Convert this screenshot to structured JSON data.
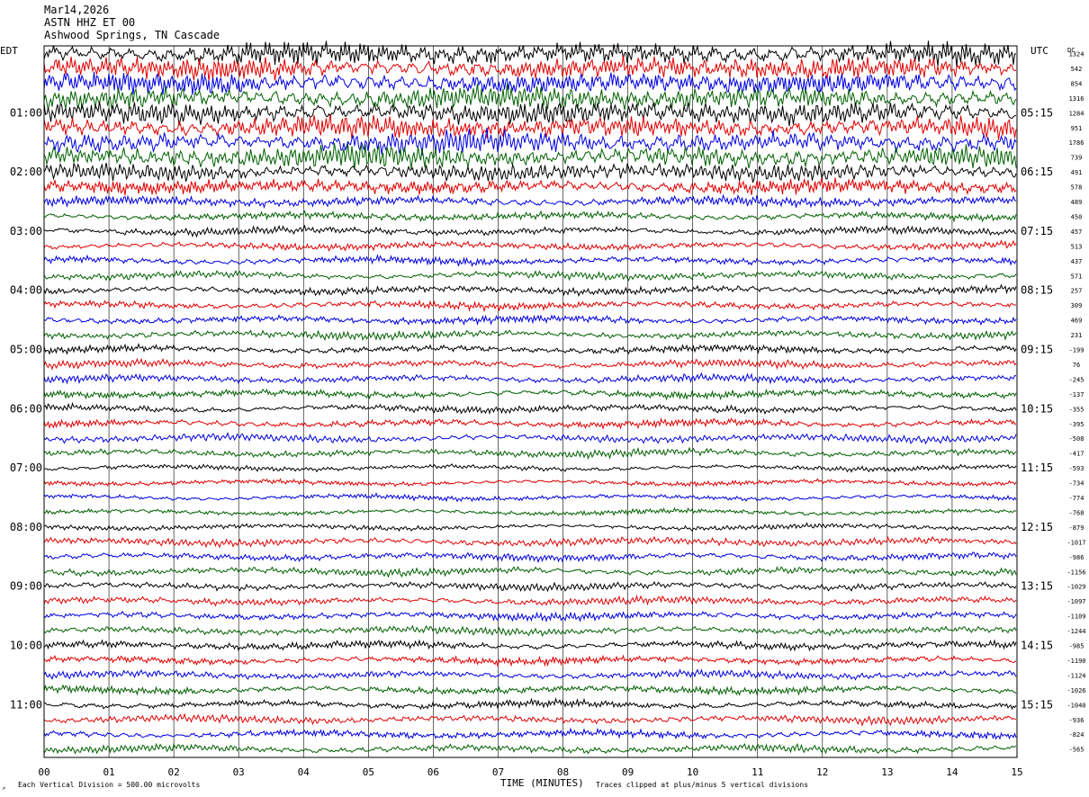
{
  "header": {
    "date": "Mar14,2026",
    "channel": "ASTN HHZ ET 00",
    "station": "Ashwood Springs, TN Cascade"
  },
  "left_axis_label": "EDT",
  "right_axis_label": "UTC",
  "dc_label": "DC",
  "footer": {
    "scale_note": "Each Vertical Division =  500.00 microvolts",
    "xlabel": "TIME (MINUTES)",
    "clip_note": "Traces clipped at plus/minus 5 vertical divisions",
    "corner_mark": "↗"
  },
  "colors": {
    "cycle": [
      "#000000",
      "#e00000",
      "#0000e0",
      "#006000"
    ]
  },
  "chart_data": {
    "type": "line",
    "xlabel": "TIME (MINUTES)",
    "xlim": [
      0,
      15
    ],
    "x_ticks": [
      "00",
      "01",
      "02",
      "03",
      "04",
      "05",
      "06",
      "07",
      "08",
      "09",
      "10",
      "11",
      "12",
      "13",
      "14",
      "15"
    ],
    "edt_hour_labels": [
      "01:00",
      "02:00",
      "03:00",
      "04:00",
      "05:00",
      "06:00",
      "07:00",
      "08:00",
      "09:00",
      "10:00",
      "11:00"
    ],
    "utc_hour_labels": [
      "05:15",
      "06:15",
      "07:15",
      "08:15",
      "09:15",
      "10:15",
      "11:15",
      "12:15",
      "13:15",
      "14:15",
      "15:15"
    ],
    "dc_offsets": [
      1324,
      542,
      854,
      1316,
      1284,
      951,
      1786,
      739,
      491,
      578,
      489,
      450,
      457,
      513,
      437,
      571,
      257,
      309,
      469,
      231,
      -199,
      76,
      -245,
      -137,
      -355,
      -395,
      -508,
      -417,
      -593,
      -734,
      -774,
      -768,
      -879,
      -1017,
      -986,
      -1156,
      -1029,
      -1097,
      -1109,
      -1244,
      -985,
      -1190,
      -1124,
      -1026,
      -1040,
      -936,
      -824,
      -565
    ],
    "trace_amplitude": [
      9,
      9,
      9,
      9,
      9,
      9,
      9,
      9,
      7,
      6,
      4,
      3,
      3,
      3,
      3,
      3,
      3,
      3,
      3,
      3,
      3,
      3,
      3,
      3,
      3,
      3,
      3,
      3,
      2,
      2,
      2,
      2,
      2,
      3,
      3,
      3,
      3,
      3,
      3,
      3,
      3,
      3,
      3,
      3,
      3,
      3,
      3,
      3
    ],
    "units": "microvolts",
    "vertical_division": "500.00 microvolts",
    "clip": "plus/minus 5 vertical divisions"
  }
}
